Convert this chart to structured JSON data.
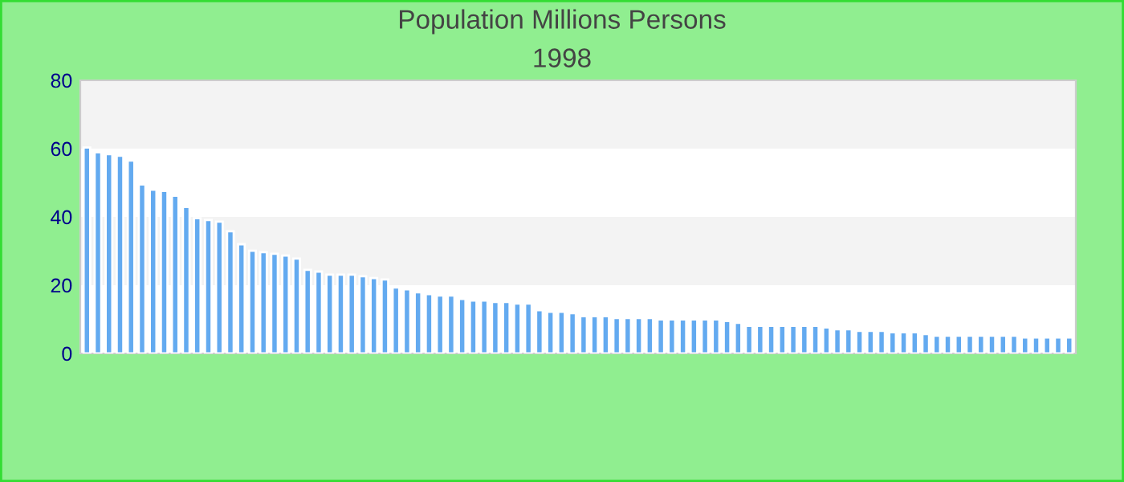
{
  "chart_data": {
    "type": "bar",
    "title": "Population Millions Persons",
    "subtitle": "1998",
    "categories": [
      null,
      null,
      null,
      null,
      null,
      null,
      null,
      null,
      null,
      null,
      null,
      null,
      null,
      null,
      null,
      null,
      null,
      null,
      null,
      null,
      null,
      null,
      null,
      null,
      null,
      null,
      null,
      null,
      null,
      null,
      null,
      null,
      null,
      null,
      null,
      null,
      null,
      null,
      null,
      null,
      null,
      null,
      null,
      null,
      null,
      null,
      null,
      null,
      null,
      null,
      null,
      null,
      null,
      null,
      null,
      null,
      null,
      null,
      null,
      null,
      null,
      null,
      null,
      null,
      null,
      null,
      null,
      null,
      null,
      null,
      null,
      null,
      null,
      null,
      null,
      null,
      null,
      null,
      null,
      null,
      null,
      null,
      null,
      null,
      null,
      null,
      null,
      null,
      null,
      null
    ],
    "values": [
      60.3,
      58.9,
      58.4,
      57.9,
      56.5,
      49.5,
      48.0,
      47.6,
      46.2,
      42.9,
      39.6,
      39.1,
      38.6,
      35.8,
      32.0,
      30.1,
      29.7,
      29.2,
      28.7,
      27.8,
      24.5,
      24.0,
      23.1,
      23.1,
      23.1,
      22.6,
      22.1,
      21.7,
      19.3,
      18.8,
      17.9,
      17.4,
      17.0,
      17.0,
      16.0,
      15.5,
      15.5,
      15.1,
      15.1,
      14.6,
      14.6,
      12.7,
      12.2,
      12.2,
      11.8,
      10.9,
      10.9,
      10.9,
      10.4,
      10.4,
      10.4,
      10.4,
      10.0,
      10.0,
      10.0,
      10.0,
      10.0,
      10.0,
      9.5,
      9.0,
      8.1,
      8.1,
      8.1,
      8.1,
      8.1,
      8.1,
      8.1,
      7.6,
      7.1,
      7.1,
      6.6,
      6.6,
      6.6,
      6.2,
      6.2,
      6.2,
      5.7,
      5.2,
      5.2,
      5.2,
      5.2,
      5.2,
      5.2,
      5.2,
      5.2,
      4.7,
      4.7,
      4.7,
      4.7,
      4.7
    ],
    "color": "#63aaf0",
    "ylim": [
      0,
      80
    ],
    "yticks": [
      0,
      20,
      40,
      60,
      80
    ],
    "grid": false,
    "tick_labels": "y",
    "bands": [
      {
        "axis": "y",
        "from": 20,
        "to": 40,
        "color": "#f3f3f3"
      },
      {
        "axis": "y",
        "from": 60,
        "to": 80,
        "color": "#f3f3f3"
      }
    ]
  }
}
